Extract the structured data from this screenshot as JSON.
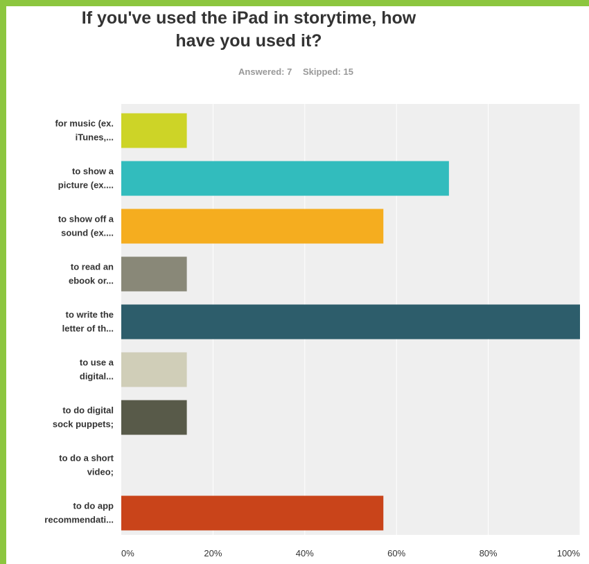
{
  "header": {
    "title_line1": "If you've used the iPad in storytime, how",
    "title_line2": "have you used it?",
    "answered": "Answered: 7",
    "skipped": "Skipped: 15"
  },
  "colors": {
    "frame": "#8cc63f",
    "plot_background": "#efefef",
    "gridline": "#ffffff"
  },
  "chart_data": {
    "type": "bar",
    "orientation": "horizontal",
    "title": "If you've used the iPad in storytime, how have you used it?",
    "xlabel": "",
    "ylabel": "",
    "xlim": [
      0,
      100
    ],
    "x_ticks": [
      "0%",
      "20%",
      "40%",
      "60%",
      "80%",
      "100%"
    ],
    "grid": true,
    "categories": [
      {
        "label_lines": [
          "for music (ex.",
          "iTunes,..."
        ],
        "value": 14.29,
        "color": "#cdd427"
      },
      {
        "label_lines": [
          "to show a",
          "picture (ex...."
        ],
        "value": 71.43,
        "color": "#32bcbd"
      },
      {
        "label_lines": [
          "to show off a",
          "sound (ex...."
        ],
        "value": 57.14,
        "color": "#f5ad1f"
      },
      {
        "label_lines": [
          "to read an",
          "ebook or..."
        ],
        "value": 14.29,
        "color": "#898878"
      },
      {
        "label_lines": [
          "to write the",
          "letter of th..."
        ],
        "value": 100,
        "color": "#2d5d6b"
      },
      {
        "label_lines": [
          "to use a",
          "digital..."
        ],
        "value": 14.29,
        "color": "#d0ceb8"
      },
      {
        "label_lines": [
          "to do digital",
          "sock puppets;"
        ],
        "value": 14.29,
        "color": "#585a49"
      },
      {
        "label_lines": [
          "to do a short",
          "video;"
        ],
        "value": 0,
        "color": "#999999"
      },
      {
        "label_lines": [
          "to do app",
          "recommendati..."
        ],
        "value": 57.14,
        "color": "#c9441a"
      }
    ]
  }
}
